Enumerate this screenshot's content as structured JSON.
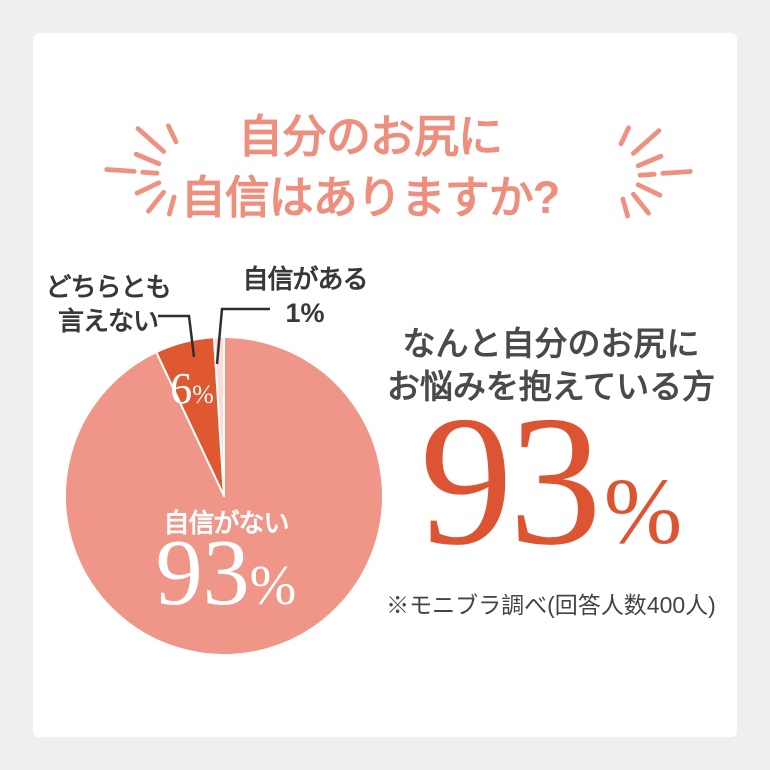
{
  "colors": {
    "background": "#efefef",
    "card": "#ffffff",
    "title": "#ee8e7d",
    "burst": "#ef917e",
    "callout_text": "#383838",
    "heading_text": "#4a4a4a",
    "note_text": "#434343",
    "big_value": "#dd5433",
    "leader_line": "#2e2e2e",
    "pie_label_text": "#ffffff"
  },
  "title": {
    "line1": "自分のお尻に",
    "line2": "自信はありますか?"
  },
  "chart_data": {
    "type": "pie",
    "title": "自分のお尻に自信はありますか?",
    "total": 100,
    "start_angle": "12-oclock",
    "direction": "clockwise",
    "legend_position": "callout-labels",
    "slices": [
      {
        "id": "no-confidence",
        "label": "自信がない",
        "value": 93,
        "color": "#f09689"
      },
      {
        "id": "neutral",
        "label": "どちらとも言えない",
        "value": 6,
        "color": "#e0582f"
      },
      {
        "id": "confident",
        "label": "自信がある",
        "value": 1,
        "color": "#f9dcd3"
      }
    ]
  },
  "units": {
    "percent": "%"
  },
  "callouts": {
    "neutral_lines": [
      "どちらとも",
      "言えない"
    ]
  },
  "highlight": {
    "line1": "なんと自分のお尻に",
    "line2": "お悩みを抱えている方",
    "value": 93,
    "note": "※モニブラ調べ(回答人数400人)"
  }
}
